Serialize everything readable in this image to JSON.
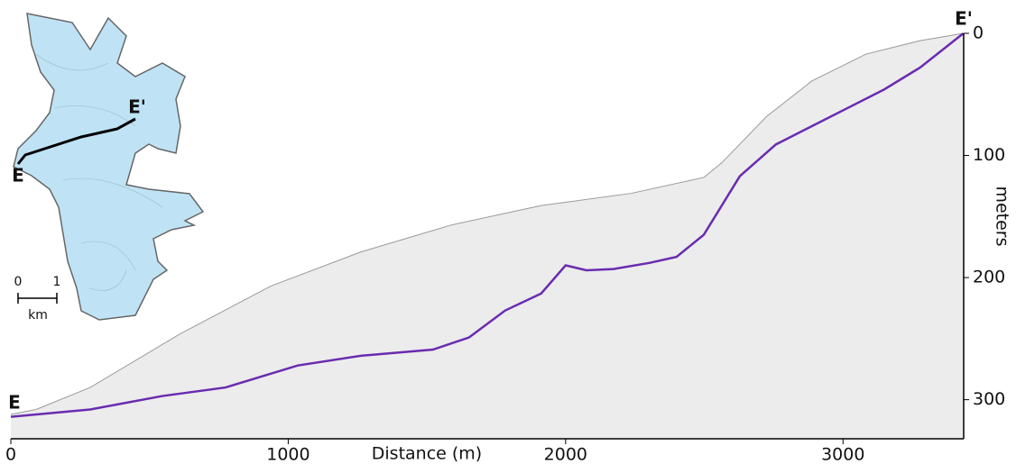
{
  "chart_data": {
    "type": "profile",
    "x_label": "Distance (m)",
    "y_label": "meters",
    "xlim": [
      0,
      3435
    ],
    "xticks": [
      0,
      1000,
      2000,
      3000
    ],
    "ylim": [
      0,
      332
    ],
    "yticks": [
      0,
      100,
      200,
      300
    ],
    "y_inverted": true,
    "annotations": [
      "E",
      "E'"
    ],
    "series": [
      {
        "color": "#9a9a9a",
        "x": [
          0,
          91,
          286,
          611,
          937,
          1262,
          1587,
          1912,
          2237,
          2498,
          2563,
          2725,
          2888,
          3083,
          3278,
          3434
        ],
        "values": [
          312,
          308,
          290,
          246,
          207,
          179,
          157,
          141,
          131,
          118,
          106,
          68,
          39,
          17,
          6,
          0
        ]
      },
      {
        "color": "#6a2bb0",
        "x": [
          0,
          286,
          546,
          774,
          1034,
          1262,
          1522,
          1652,
          1782,
          1912,
          2000,
          2075,
          2172,
          2302,
          2400,
          2498,
          2628,
          2758,
          2888,
          3018,
          3148,
          3278,
          3434
        ],
        "values": [
          314,
          308,
          297,
          290,
          272,
          264,
          259,
          249,
          227,
          213,
          190,
          194,
          193,
          188,
          183,
          165,
          117,
          91,
          76,
          61,
          46,
          28,
          0
        ]
      }
    ],
    "inset": {
      "start_label": "E",
      "end_label": "E'",
      "scale_labels": [
        "0",
        "1"
      ],
      "scale_unit": "km"
    }
  }
}
